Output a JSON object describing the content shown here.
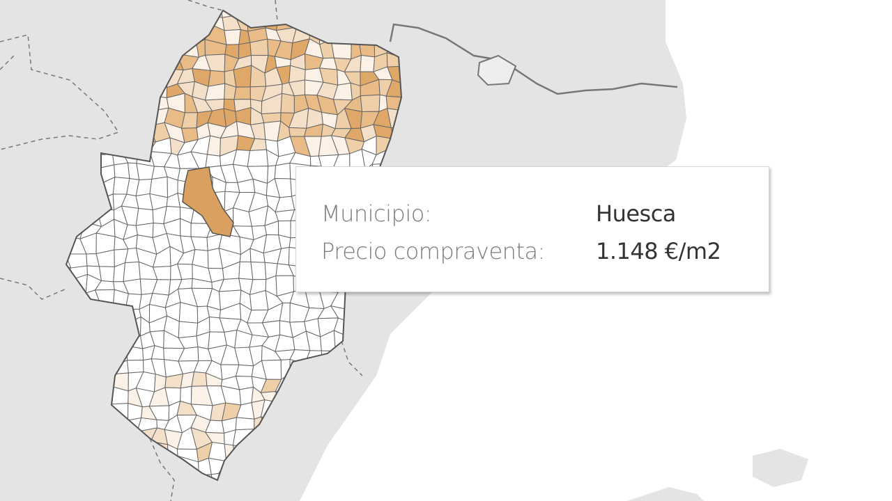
{
  "map": {
    "highlighted_municipio": "Huesca",
    "colors": {
      "land": "#e6e6e6",
      "sea": "#ffffff",
      "border": "#6b6b6b",
      "low": "#ffffff",
      "mid": "#f1d9bc",
      "high": "#e0a868",
      "selected": "#d9a060"
    }
  },
  "tooltip": {
    "rows": [
      {
        "label": "Municipio:",
        "value": "Huesca"
      },
      {
        "label": "Precio compraventa:",
        "value": "1.148 €/m2"
      }
    ]
  }
}
